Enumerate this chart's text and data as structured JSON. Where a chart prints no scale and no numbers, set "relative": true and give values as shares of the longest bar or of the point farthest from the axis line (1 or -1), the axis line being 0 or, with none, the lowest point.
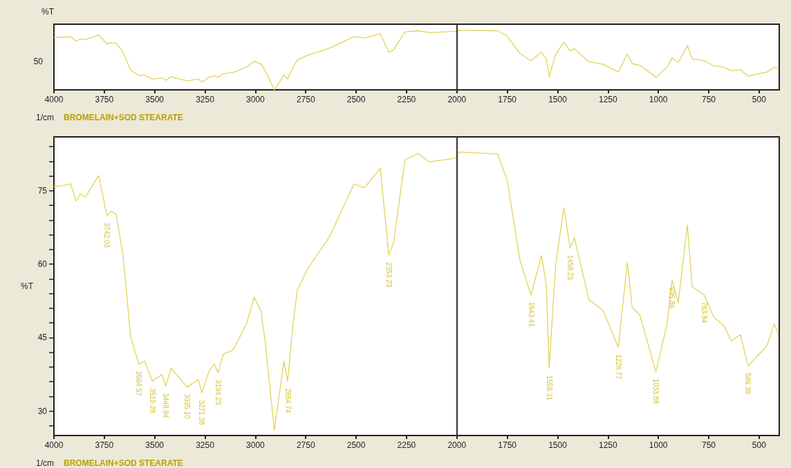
{
  "chart_data": [
    {
      "type": "line",
      "ylabel": "%T",
      "xlabel": "1/cm",
      "annotations": [
        "50",
        "BROMELAIN+SOD STEARATE"
      ],
      "relative": true,
      "xlim": [
        4000,
        400
      ],
      "xticks": [
        4000,
        3750,
        3500,
        3250,
        3000,
        2750,
        2500,
        2250,
        2000,
        1750,
        1500,
        1250,
        1000,
        750,
        500
      ],
      "grid": false,
      "marker": "none",
      "ref_lines": [
        {
          "axis": "x",
          "value": 2000,
          "color": "#333333"
        }
      ],
      "series": [
        {
          "color": "#e3d35a",
          "x": [
            4000,
            3950,
            3917,
            3890,
            3870,
            3844,
            3778,
            3737,
            3716,
            3691,
            3657,
            3619,
            3578,
            3550,
            3512,
            3463,
            3446,
            3418,
            3339,
            3283,
            3266,
            3231,
            3204,
            3186,
            3159,
            3110,
            3044,
            3006,
            2972,
            2951,
            2906,
            2858,
            2840,
            2813,
            2792,
            2740,
            2632,
            2511,
            2459,
            2380,
            2338,
            2314,
            2258,
            2193,
            2137,
            2012,
            1988,
            1798,
            1750,
            1687,
            1632,
            1580,
            1556,
            1542,
            1510,
            1469,
            1438,
            1417,
            1344,
            1275,
            1199,
            1154,
            1130,
            1092,
            1012,
            957,
            932,
            901,
            856,
            832,
            773,
            724,
            676,
            638,
            593,
            555,
            461,
            425,
            405
          ],
          "values": [
            0.88,
            0.88,
            0.89,
            0.82,
            0.85,
            0.84,
            0.92,
            0.77,
            0.79,
            0.78,
            0.63,
            0.33,
            0.24,
            0.25,
            0.18,
            0.2,
            0.16,
            0.22,
            0.15,
            0.18,
            0.13,
            0.21,
            0.24,
            0.21,
            0.27,
            0.29,
            0.38,
            0.48,
            0.43,
            0.32,
            0,
            0.25,
            0.18,
            0.38,
            0.5,
            0.58,
            0.7,
            0.89,
            0.87,
            0.94,
            0.63,
            0.67,
            0.97,
            0.99,
            0.96,
            0.98,
            1,
            0.99,
            0.9,
            0.61,
            0.49,
            0.63,
            0.52,
            0.22,
            0.59,
            0.8,
            0.65,
            0.69,
            0.47,
            0.43,
            0.3,
            0.6,
            0.44,
            0.41,
            0.21,
            0.38,
            0.54,
            0.46,
            0.74,
            0.52,
            0.49,
            0.4,
            0.38,
            0.32,
            0.34,
            0.23,
            0.3,
            0.38,
            0.35
          ]
        }
      ]
    },
    {
      "type": "line",
      "ylabel": "%T",
      "xlabel": "1/cm",
      "xlim": [
        4000,
        400
      ],
      "xticks": [
        4000,
        3750,
        3500,
        3250,
        3000,
        2750,
        2500,
        2250,
        2000,
        1750,
        1500,
        1250,
        1000,
        750,
        500
      ],
      "ylim": [
        25,
        86
      ],
      "yticks": [
        {
          "value": 27,
          "label": null
        },
        30,
        {
          "value": 33,
          "label": null
        },
        {
          "value": 36,
          "label": null
        },
        {
          "value": 39,
          "label": null
        },
        {
          "value": 42,
          "label": null
        },
        45,
        {
          "value": 48,
          "label": null
        },
        {
          "value": 51,
          "label": null
        },
        {
          "value": 54,
          "label": null
        },
        {
          "value": 57,
          "label": null
        },
        60,
        {
          "value": 63,
          "label": null
        },
        {
          "value": 66,
          "label": null
        },
        {
          "value": 69,
          "label": null
        },
        {
          "value": 72,
          "label": null
        },
        75,
        {
          "value": 78,
          "label": null
        },
        {
          "value": 81,
          "label": null
        },
        {
          "value": 84,
          "label": null
        }
      ],
      "grid": false,
      "marker": "none",
      "ref_lines": [
        {
          "axis": "x",
          "value": 2000,
          "color": "#333333"
        }
      ],
      "annotations": [
        "BROMELAIN+SOD STEARATE",
        {
          "text": "3742.03",
          "x": 3737,
          "y": 69.9
        },
        {
          "text": "3564.57",
          "x": 3578,
          "y": 39.6
        },
        {
          "text": "3510.28",
          "x": 3512,
          "y": 36.1
        },
        {
          "text": "3448.84",
          "x": 3446,
          "y": 35.1
        },
        {
          "text": "3335.10",
          "x": 3339,
          "y": 34.9
        },
        {
          "text": "3271.38",
          "x": 3266,
          "y": 33.7
        },
        {
          "text": "3194.23",
          "x": 3186,
          "y": 37.8
        },
        {
          "text": "2854.74",
          "x": 2840,
          "y": 36.1
        },
        {
          "text": "2353.23",
          "x": 2338,
          "y": 61.8
        },
        {
          "text": "1643.41",
          "x": 1632,
          "y": 53.7
        },
        {
          "text": "1558.31",
          "x": 1542,
          "y": 38.7
        },
        {
          "text": "1458.23",
          "x": 1438,
          "y": 63.3
        },
        {
          "text": "1226.77",
          "x": 1199,
          "y": 43.0
        },
        {
          "text": "1033.88",
          "x": 1012,
          "y": 38.0
        },
        {
          "text": "935.86",
          "x": 932,
          "y": 56.7
        },
        {
          "text": "763.84",
          "x": 773,
          "y": 53.7
        },
        {
          "text": "586.38",
          "x": 555,
          "y": 39.2
        }
      ],
      "series": [
        {
          "color": "#e3d35a",
          "x": [
            4000,
            3950,
            3917,
            3890,
            3870,
            3844,
            3778,
            3737,
            3716,
            3691,
            3657,
            3619,
            3578,
            3550,
            3512,
            3463,
            3446,
            3418,
            3339,
            3283,
            3266,
            3231,
            3204,
            3186,
            3159,
            3110,
            3044,
            3006,
            2972,
            2951,
            2906,
            2858,
            2840,
            2813,
            2792,
            2740,
            2632,
            2511,
            2459,
            2380,
            2338,
            2314,
            2258,
            2193,
            2137,
            2012,
            1988,
            1798,
            1750,
            1687,
            1632,
            1580,
            1556,
            1542,
            1510,
            1469,
            1438,
            1417,
            1344,
            1275,
            1199,
            1154,
            1130,
            1092,
            1012,
            957,
            932,
            901,
            856,
            832,
            773,
            724,
            676,
            638,
            593,
            555,
            461,
            425,
            405
          ],
          "values": [
            75.8,
            76.1,
            76.4,
            72.9,
            74.3,
            73.7,
            78.1,
            69.9,
            70.8,
            70.2,
            61.8,
            45.0,
            39.6,
            40.2,
            36.1,
            37.5,
            35.1,
            38.7,
            34.9,
            36.4,
            33.7,
            38.1,
            39.6,
            37.8,
            41.6,
            42.5,
            47.8,
            53.2,
            50.4,
            44.0,
            26.1,
            40.2,
            36.1,
            47.8,
            54.7,
            59.1,
            65.6,
            76.4,
            75.6,
            79.6,
            61.8,
            64.4,
            81.3,
            82.6,
            80.9,
            81.6,
            82.9,
            82.5,
            77.1,
            60.8,
            53.7,
            61.8,
            55.7,
            38.7,
            59.8,
            71.5,
            63.3,
            65.4,
            52.7,
            50.6,
            43.0,
            60.4,
            51.2,
            49.6,
            38.0,
            47.8,
            56.7,
            52.2,
            68.0,
            55.4,
            53.7,
            49.1,
            47.5,
            44.3,
            45.6,
            39.2,
            43.3,
            47.8,
            45.8
          ]
        }
      ]
    }
  ]
}
